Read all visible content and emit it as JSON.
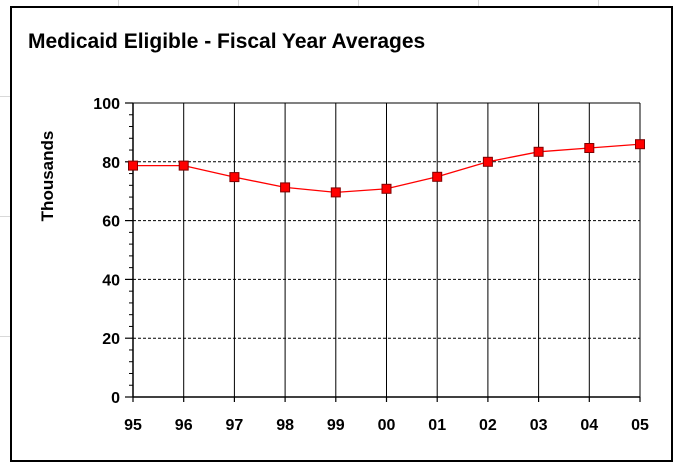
{
  "chart_data": {
    "type": "line",
    "title": "Medicaid Eligible - Fiscal Year Averages",
    "xlabel": "",
    "ylabel": "Thousands",
    "categories": [
      "95",
      "96",
      "97",
      "98",
      "99",
      "00",
      "01",
      "02",
      "03",
      "04",
      "05"
    ],
    "series": [
      {
        "values": [
          78.7,
          78.7,
          74.8,
          71.3,
          69.6,
          70.8,
          74.9,
          80.0,
          83.4,
          84.7,
          86.0
        ],
        "line_color": "#ff0000",
        "marker_color": "#cc0000",
        "marker": "square"
      }
    ],
    "ylim": [
      0,
      100
    ],
    "yticks": [
      "0",
      "20",
      "40",
      "60",
      "80",
      "100"
    ],
    "grid": {
      "vertical": "solid",
      "horizontal": "dashed"
    },
    "legend": "none"
  }
}
